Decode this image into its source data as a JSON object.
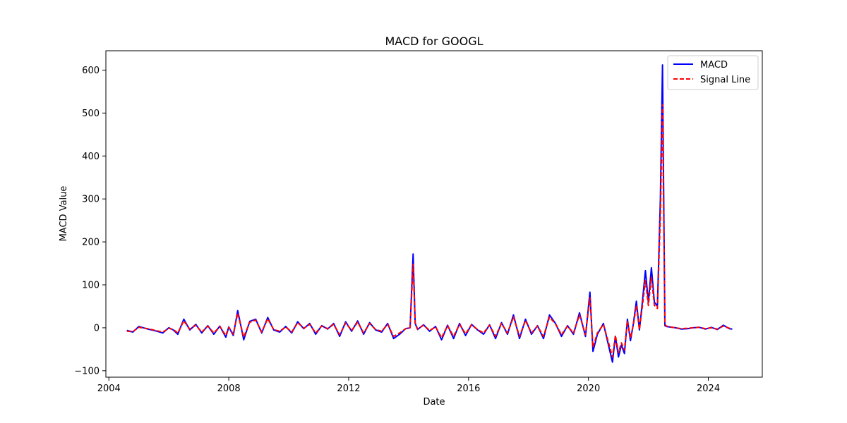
{
  "chart_data": {
    "type": "line",
    "title": "MACD for GOOGL",
    "xlabel": "Date",
    "ylabel": "MACD Value",
    "xlim": [
      2003.9,
      2025.8
    ],
    "ylim": [
      -115,
      645
    ],
    "x_ticks": [
      2004,
      2008,
      2012,
      2016,
      2020,
      2024
    ],
    "y_ticks": [
      -100,
      0,
      100,
      200,
      300,
      400,
      500,
      600
    ],
    "grid": false,
    "legend_position": "top-right",
    "series": [
      {
        "name": "MACD",
        "color": "#0000ff",
        "style": "solid",
        "x": [
          2004.6,
          2004.8,
          2005.0,
          2005.3,
          2005.6,
          2005.8,
          2006.0,
          2006.15,
          2006.3,
          2006.5,
          2006.7,
          2006.9,
          2007.1,
          2007.3,
          2007.5,
          2007.7,
          2007.9,
          2008.0,
          2008.15,
          2008.3,
          2008.5,
          2008.7,
          2008.9,
          2009.1,
          2009.3,
          2009.5,
          2009.7,
          2009.9,
          2010.1,
          2010.3,
          2010.5,
          2010.7,
          2010.9,
          2011.1,
          2011.3,
          2011.5,
          2011.7,
          2011.9,
          2012.1,
          2012.3,
          2012.5,
          2012.7,
          2012.9,
          2013.1,
          2013.3,
          2013.5,
          2013.7,
          2013.9,
          2014.05,
          2014.15,
          2014.22,
          2014.3,
          2014.5,
          2014.7,
          2014.9,
          2015.1,
          2015.3,
          2015.5,
          2015.7,
          2015.9,
          2016.1,
          2016.3,
          2016.5,
          2016.7,
          2016.9,
          2017.1,
          2017.3,
          2017.5,
          2017.7,
          2017.9,
          2018.1,
          2018.3,
          2018.5,
          2018.7,
          2018.9,
          2019.1,
          2019.3,
          2019.5,
          2019.7,
          2019.9,
          2020.05,
          2020.15,
          2020.3,
          2020.5,
          2020.7,
          2020.8,
          2020.9,
          2021.0,
          2021.1,
          2021.2,
          2021.3,
          2021.4,
          2021.5,
          2021.6,
          2021.7,
          2021.8,
          2021.9,
          2022.0,
          2022.1,
          2022.2,
          2022.3,
          2022.4,
          2022.47,
          2022.55,
          2022.6,
          2022.7,
          2022.9,
          2023.1,
          2023.3,
          2023.5,
          2023.7,
          2023.9,
          2024.1,
          2024.3,
          2024.5,
          2024.7,
          2024.8
        ],
        "values": [
          -6,
          -10,
          3,
          -3,
          -8,
          -12,
          0,
          -5,
          -15,
          20,
          -5,
          8,
          -12,
          5,
          -15,
          4,
          -22,
          2,
          -18,
          40,
          -28,
          15,
          20,
          -12,
          24,
          -5,
          -10,
          3,
          -12,
          14,
          -2,
          10,
          -15,
          5,
          -3,
          10,
          -20,
          14,
          -8,
          16,
          -15,
          12,
          -5,
          -10,
          10,
          -25,
          -15,
          -2,
          0,
          172,
          10,
          -4,
          7,
          -8,
          3,
          -28,
          6,
          -25,
          10,
          -18,
          8,
          -5,
          -15,
          7,
          -25,
          12,
          -15,
          30,
          -25,
          20,
          -15,
          5,
          -25,
          30,
          10,
          -20,
          5,
          -15,
          35,
          -20,
          83,
          -55,
          -15,
          10,
          -50,
          -80,
          -20,
          -68,
          -40,
          -60,
          20,
          -30,
          10,
          62,
          -5,
          60,
          133,
          60,
          140,
          60,
          50,
          300,
          612,
          5,
          3,
          2,
          0,
          -3,
          -2,
          0,
          1,
          -3,
          1,
          -4,
          6,
          -2,
          -3
        ]
      },
      {
        "name": "Signal Line",
        "color": "#ff0000",
        "style": "dashed",
        "x": [
          2004.6,
          2004.8,
          2005.0,
          2005.3,
          2005.6,
          2005.8,
          2006.0,
          2006.15,
          2006.3,
          2006.5,
          2006.7,
          2006.9,
          2007.1,
          2007.3,
          2007.5,
          2007.7,
          2007.9,
          2008.0,
          2008.15,
          2008.3,
          2008.5,
          2008.7,
          2008.9,
          2009.1,
          2009.3,
          2009.5,
          2009.7,
          2009.9,
          2010.1,
          2010.3,
          2010.5,
          2010.7,
          2010.9,
          2011.1,
          2011.3,
          2011.5,
          2011.7,
          2011.9,
          2012.1,
          2012.3,
          2012.5,
          2012.7,
          2012.9,
          2013.1,
          2013.3,
          2013.5,
          2013.7,
          2013.9,
          2014.05,
          2014.15,
          2014.22,
          2014.3,
          2014.5,
          2014.7,
          2014.9,
          2015.1,
          2015.3,
          2015.5,
          2015.7,
          2015.9,
          2016.1,
          2016.3,
          2016.5,
          2016.7,
          2016.9,
          2017.1,
          2017.3,
          2017.5,
          2017.7,
          2017.9,
          2018.1,
          2018.3,
          2018.5,
          2018.7,
          2018.9,
          2019.1,
          2019.3,
          2019.5,
          2019.7,
          2019.9,
          2020.05,
          2020.15,
          2020.3,
          2020.5,
          2020.7,
          2020.8,
          2020.9,
          2021.0,
          2021.1,
          2021.2,
          2021.3,
          2021.4,
          2021.5,
          2021.6,
          2021.7,
          2021.8,
          2021.9,
          2022.0,
          2022.1,
          2022.2,
          2022.3,
          2022.4,
          2022.47,
          2022.55,
          2022.6,
          2022.7,
          2022.9,
          2023.1,
          2023.3,
          2023.5,
          2023.7,
          2023.9,
          2024.1,
          2024.3,
          2024.5,
          2024.7,
          2024.8
        ],
        "values": [
          -8,
          -9,
          1,
          -2,
          -7,
          -10,
          -1,
          -4,
          -12,
          16,
          -3,
          6,
          -10,
          4,
          -12,
          3,
          -18,
          1,
          -15,
          34,
          -22,
          13,
          18,
          -10,
          21,
          -4,
          -8,
          2,
          -10,
          12,
          -1,
          8,
          -12,
          4,
          -2,
          8,
          -16,
          11,
          -6,
          13,
          -12,
          10,
          -4,
          -8,
          8,
          -20,
          -12,
          -2,
          0,
          148,
          12,
          -3,
          6,
          -6,
          2,
          -23,
          5,
          -20,
          8,
          -14,
          7,
          -4,
          -12,
          6,
          -20,
          10,
          -12,
          25,
          -20,
          17,
          -12,
          4,
          -20,
          25,
          9,
          -16,
          4,
          -12,
          30,
          -16,
          70,
          -45,
          -12,
          8,
          -42,
          -68,
          -18,
          -58,
          -35,
          -52,
          16,
          -24,
          8,
          52,
          -4,
          50,
          110,
          52,
          118,
          52,
          45,
          260,
          520,
          8,
          4,
          2,
          0,
          -2,
          -1,
          0,
          1,
          -2,
          0,
          -3,
          4,
          -1,
          -2
        ]
      }
    ]
  }
}
